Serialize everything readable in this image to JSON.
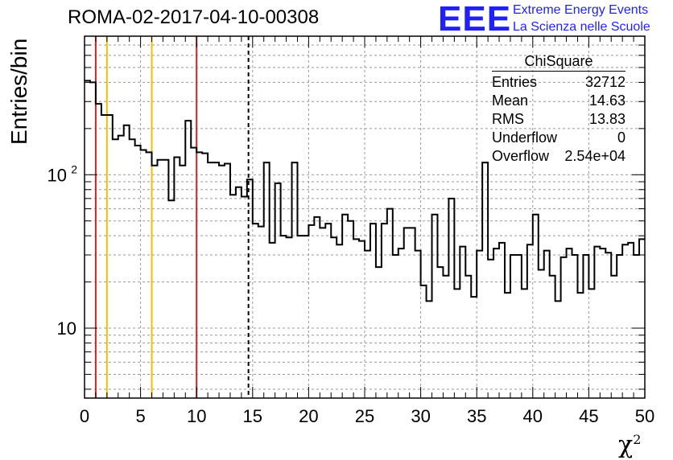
{
  "header": {
    "title": "ROMA-02-2017-04-10-00308",
    "logo": "EEE",
    "logo_line1": "Extreme Energy Events",
    "logo_line2": "La Scienza nelle Scuole"
  },
  "stats_box": {
    "title": "ChiSquare",
    "rows": [
      {
        "label": "Entries",
        "value": "32712"
      },
      {
        "label": "Mean",
        "value": "14.63"
      },
      {
        "label": "RMS",
        "value": "13.83"
      },
      {
        "label": "Underflow",
        "value": "0"
      },
      {
        "label": "Overflow",
        "value": "2.54e+04"
      }
    ]
  },
  "chart_data": {
    "type": "histogram",
    "xlabel": "χ",
    "xlabel_sup": "2",
    "ylabel": "Entries/bin",
    "xlim": [
      0,
      50
    ],
    "ylim": [
      3.5,
      800
    ],
    "yscale": "log",
    "grid": true,
    "bin_width": 0.5,
    "x_ticks": [
      "0",
      "5",
      "10",
      "15",
      "20",
      "25",
      "30",
      "35",
      "40",
      "45",
      "50"
    ],
    "y_ticks": [
      {
        "value": 10,
        "label": "10"
      },
      {
        "value": 100,
        "label": "10",
        "sup": "2"
      }
    ],
    "values": [
      410,
      400,
      290,
      245,
      245,
      170,
      180,
      210,
      170,
      155,
      145,
      140,
      115,
      125,
      125,
      68,
      130,
      115,
      225,
      150,
      140,
      138,
      120,
      120,
      115,
      118,
      74,
      83,
      72,
      93,
      48,
      46,
      120,
      36,
      88,
      40,
      39,
      120,
      40,
      40,
      47,
      53,
      45,
      48,
      39,
      35,
      55,
      50,
      38,
      37,
      32,
      48,
      25,
      48,
      60,
      30,
      33,
      45,
      45,
      32,
      19,
      15,
      55,
      25,
      22,
      70,
      18,
      34,
      22,
      16,
      32,
      120,
      28,
      33,
      36,
      17,
      30,
      30,
      18,
      35,
      55,
      24,
      32,
      22,
      15,
      29,
      33,
      30,
      17,
      30,
      18,
      34,
      33,
      31,
      22,
      30,
      35,
      36,
      30,
      38
    ],
    "vlines": [
      {
        "x": 1,
        "color": "#e02020",
        "style": "solid"
      },
      {
        "x": 2,
        "color": "#f0c000",
        "style": "solid"
      },
      {
        "x": 6,
        "color": "#f0c000",
        "style": "solid"
      },
      {
        "x": 10,
        "color": "#e02020",
        "style": "solid"
      },
      {
        "x": 14.63,
        "color": "#000000",
        "style": "dashed"
      }
    ]
  }
}
